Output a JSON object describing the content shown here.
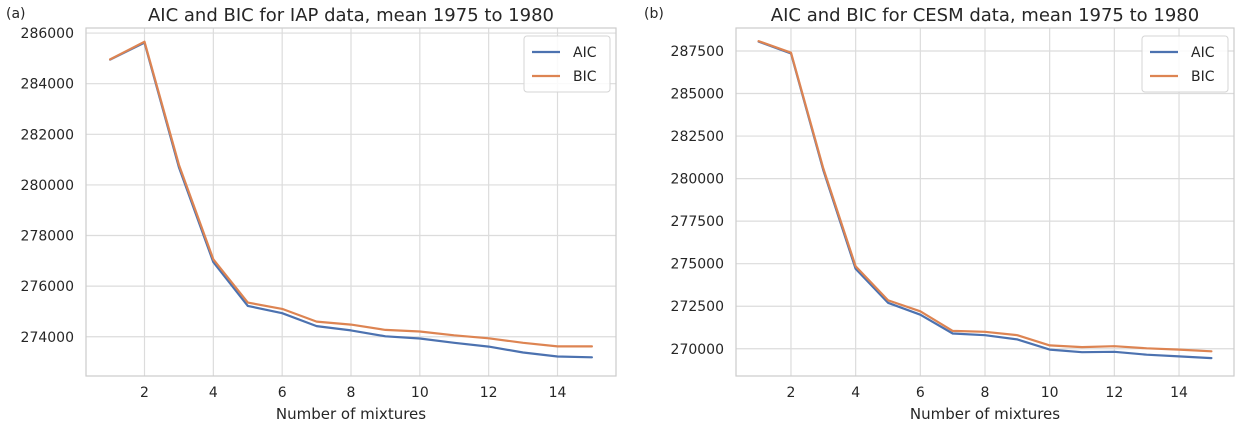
{
  "chart_data": [
    {
      "panel_label": "(a)",
      "type": "line",
      "title": "AIC and BIC for IAP data, mean 1975 to 1980",
      "xlabel": "Number of mixtures",
      "ylabel": "",
      "x": [
        1,
        2,
        3,
        4,
        5,
        6,
        7,
        8,
        9,
        10,
        11,
        12,
        13,
        14,
        15
      ],
      "xlim": [
        0.3,
        15.7
      ],
      "ylim": [
        272450,
        286200
      ],
      "xticks": [
        2,
        4,
        6,
        8,
        10,
        12,
        14
      ],
      "yticks": [
        274000,
        276000,
        278000,
        280000,
        282000,
        284000,
        286000
      ],
      "series": [
        {
          "name": "AIC",
          "color": "#4c72b0",
          "values": [
            284950,
            285620,
            280700,
            276950,
            275220,
            274930,
            274420,
            274250,
            274020,
            273930,
            273760,
            273610,
            273380,
            273220,
            273190
          ]
        },
        {
          "name": "BIC",
          "color": "#dd8452",
          "values": [
            284960,
            285660,
            280800,
            277060,
            275350,
            275100,
            274600,
            274480,
            274270,
            274210,
            274060,
            273940,
            273760,
            273620,
            273620
          ]
        }
      ],
      "grid": true,
      "legend": "upper right"
    },
    {
      "panel_label": "(b)",
      "type": "line",
      "title": "AIC and BIC for CESM data, mean 1975 to 1980",
      "xlabel": "Number of mixtures",
      "ylabel": "",
      "x": [
        1,
        2,
        3,
        4,
        5,
        6,
        7,
        8,
        9,
        10,
        11,
        12,
        13,
        14,
        15
      ],
      "xlim": [
        0.3,
        15.7
      ],
      "ylim": [
        268400,
        288850
      ],
      "xticks": [
        2,
        4,
        6,
        8,
        10,
        12,
        14
      ],
      "yticks": [
        270000,
        272500,
        275000,
        277500,
        280000,
        282500,
        285000,
        287500
      ],
      "series": [
        {
          "name": "AIC",
          "color": "#4c72b0",
          "values": [
            288050,
            287350,
            280500,
            274700,
            272700,
            272000,
            270900,
            270800,
            270550,
            269950,
            269800,
            269820,
            269650,
            269550,
            269450
          ]
        },
        {
          "name": "BIC",
          "color": "#dd8452",
          "values": [
            288080,
            287400,
            280600,
            274850,
            272850,
            272200,
            271050,
            271000,
            270800,
            270200,
            270100,
            270150,
            270030,
            269950,
            269850
          ]
        }
      ],
      "grid": true,
      "legend": "upper right"
    }
  ]
}
